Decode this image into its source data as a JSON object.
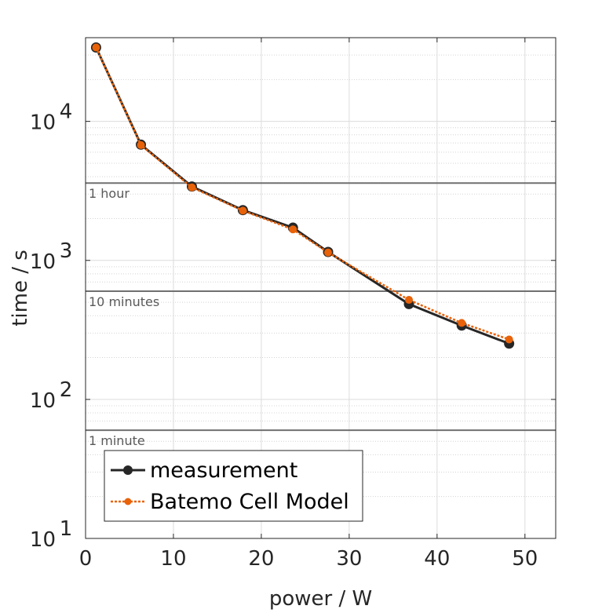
{
  "chart_data": {
    "type": "line",
    "xlabel": "power / W",
    "ylabel": "time / s",
    "xlim": [
      0,
      53.5
    ],
    "ylim": [
      10,
      40000
    ],
    "yscale": "log",
    "grid": true,
    "x_ticks": [
      0,
      10,
      20,
      30,
      40,
      50
    ],
    "x_tick_labels": [
      "0",
      "10",
      "20",
      "30",
      "40",
      "50"
    ],
    "y_ticks": [
      10,
      100,
      1000,
      10000
    ],
    "y_tick_labels": [
      {
        "base": "10",
        "exp": "1"
      },
      {
        "base": "10",
        "exp": "2"
      },
      {
        "base": "10",
        "exp": "3"
      },
      {
        "base": "10",
        "exp": "4"
      }
    ],
    "reference_lines": [
      {
        "label": "1 hour",
        "y": 3600,
        "color": "#707070"
      },
      {
        "label": "10 minutes",
        "y": 600,
        "color": "#707070"
      },
      {
        "label": "1 minute",
        "y": 60,
        "color": "#707070"
      }
    ],
    "series": [
      {
        "name": "measurement",
        "color": "#262626",
        "style": "solid",
        "x": [
          1.2,
          6.3,
          12.1,
          17.9,
          23.6,
          27.6,
          36.8,
          42.8,
          48.2
        ],
        "y": [
          34000,
          6800,
          3400,
          2300,
          1720,
          1150,
          485,
          340,
          252
        ]
      },
      {
        "name": "Batemo Cell Model",
        "color": "#e8620a",
        "style": "dotted",
        "x": [
          1.2,
          6.3,
          12.1,
          17.9,
          23.6,
          27.6,
          36.8,
          42.8,
          48.2
        ],
        "y": [
          34000,
          6750,
          3350,
          2280,
          1670,
          1140,
          520,
          355,
          270
        ]
      }
    ],
    "legend_position": "bottom-left"
  }
}
